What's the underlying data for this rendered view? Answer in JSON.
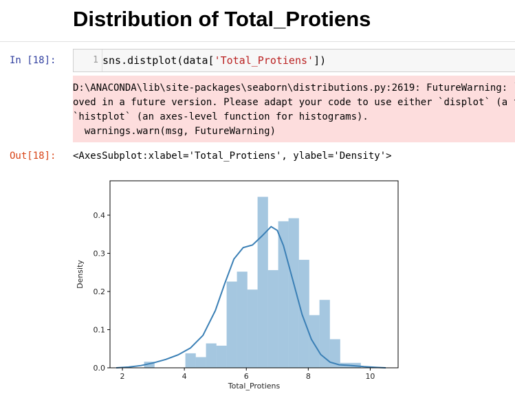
{
  "heading": "Distribution of Total_Protiens",
  "cell": {
    "in_prompt": "In [18]:",
    "line_number": "1",
    "code_before": "sns.distplot(data[",
    "code_string": "'Total_Protiens'",
    "code_after": "])",
    "stderr_lines": [
      "D:\\ANACONDA\\lib\\site-packages\\seaborn\\distributions.py:2619: FutureWarning: `distplot` is a deprecated function and will be rem",
      "oved in a future version. Please adapt your code to use either `displot` (a figure-level function with similar flexibility) or",
      "`histplot` (an axes-level function for histograms).",
      "  warnings.warn(msg, FutureWarning)"
    ],
    "out_prompt": "Out[18]:",
    "output_text": "<AxesSubplot:xlabel='Total_Protiens', ylabel='Density'>"
  },
  "colors": {
    "bar": "#a5c7e0",
    "kde": "#3a7fb5"
  },
  "chart_data": {
    "type": "bar",
    "xlabel": "Total_Protiens",
    "ylabel": "Density",
    "xlim": [
      1.6,
      10.9
    ],
    "ylim": [
      0,
      0.49
    ],
    "x_ticks": [
      2,
      4,
      6,
      8,
      10
    ],
    "y_ticks": [
      0.0,
      0.1,
      0.2,
      0.3,
      0.4
    ],
    "y_tick_labels": [
      "0.0",
      "0.1",
      "0.2",
      "0.3",
      "0.4"
    ],
    "bin_start": 2.7,
    "bin_width": 0.333,
    "values": [
      0.016,
      0.0,
      0.0,
      0.0,
      0.038,
      0.028,
      0.064,
      0.058,
      0.226,
      0.252,
      0.205,
      0.448,
      0.256,
      0.384,
      0.392,
      0.283,
      0.138,
      0.178,
      0.075,
      0.013,
      0.013
    ],
    "kde_x": [
      1.8,
      2.2,
      2.6,
      3.0,
      3.4,
      3.8,
      4.2,
      4.6,
      5.0,
      5.3,
      5.6,
      5.9,
      6.2,
      6.5,
      6.8,
      7.0,
      7.2,
      7.5,
      7.8,
      8.1,
      8.4,
      8.7,
      9.0,
      9.4,
      9.8,
      10.2,
      10.5
    ],
    "kde_y": [
      0.0,
      0.002,
      0.006,
      0.013,
      0.022,
      0.034,
      0.052,
      0.085,
      0.15,
      0.22,
      0.285,
      0.315,
      0.322,
      0.345,
      0.37,
      0.36,
      0.32,
      0.23,
      0.14,
      0.075,
      0.035,
      0.015,
      0.008,
      0.006,
      0.003,
      0.001,
      0.0
    ]
  }
}
